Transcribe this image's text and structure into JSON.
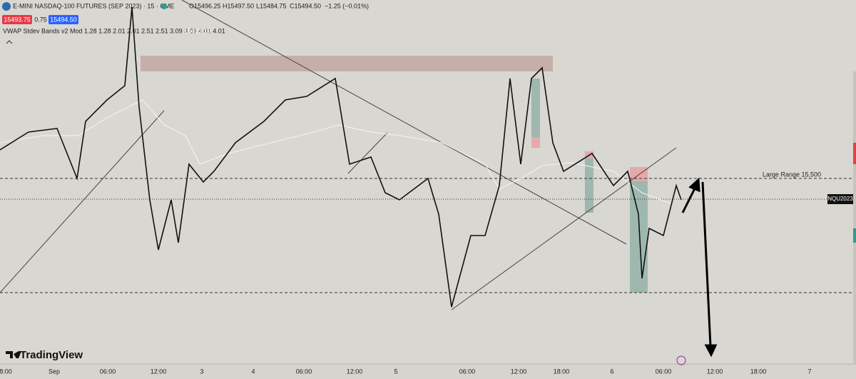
{
  "header": {
    "symbol": "E-MINI NASDAQ-100 FUTURES (SEP 2023) · 15 · CME",
    "open": "O15496.25",
    "high": "H15497.50",
    "low": "L15484.75",
    "close": "C15494.50",
    "change": "−1.25 (−0.01%)",
    "sell": "15493.75",
    "spread": "0.75",
    "buy": "15494.50",
    "indicator": "VWAP Stdev Bands v2 Mod 1.28 1.28 2.01 2.01 2.51 2.51 3.09 3.09 4.01 4.01",
    "indicator_value": "15493.16"
  },
  "annotations": {
    "level": "Large Range 15,500",
    "symbol_tag": "NQU2023"
  },
  "logo": "TradingView",
  "time_axis": [
    "8:00",
    "Sep",
    "06:00",
    "12:00",
    "3",
    "4",
    "06:00",
    "12:00",
    "5",
    "06:00",
    "12:00",
    "18:00",
    "6",
    "06:00",
    "12:00",
    "18:00",
    "7"
  ]
}
